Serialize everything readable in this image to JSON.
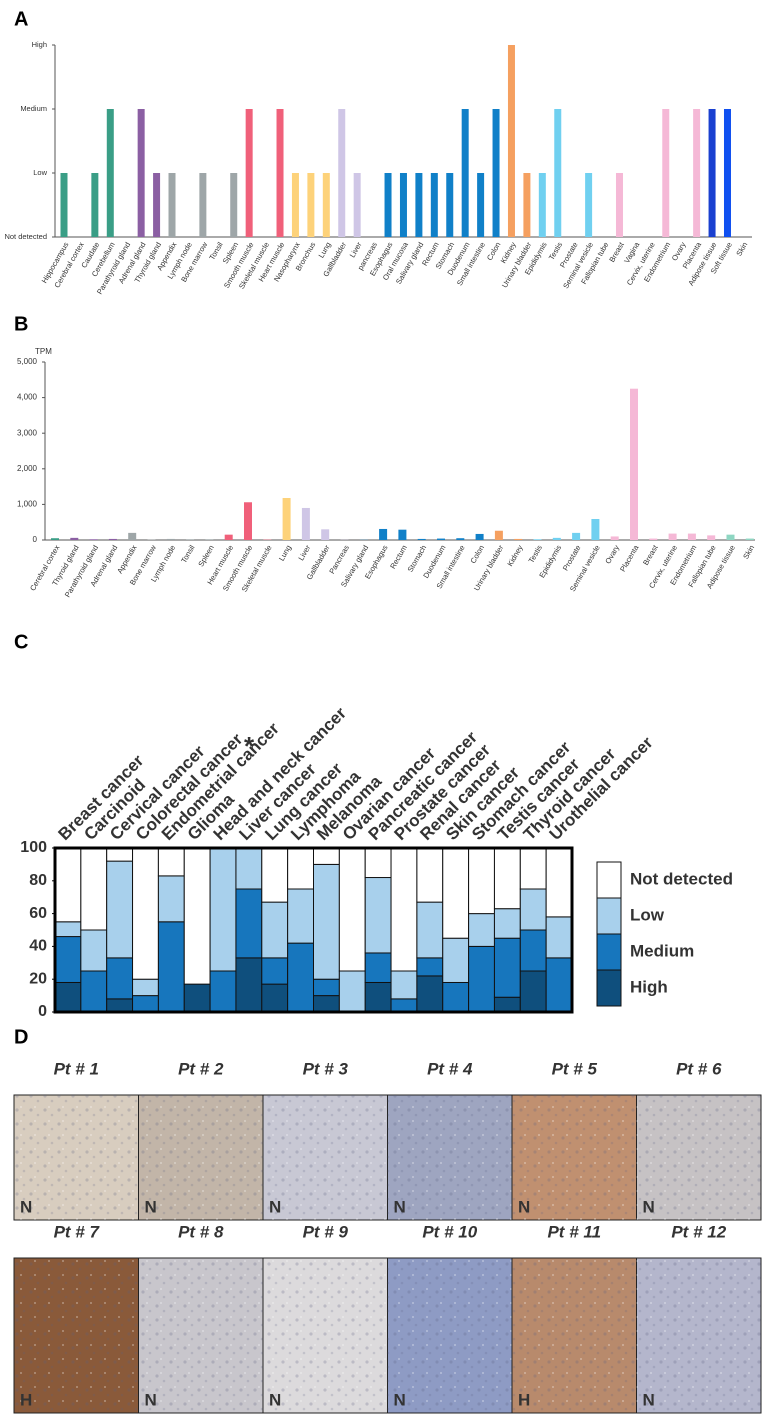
{
  "chart_data": [
    {
      "type": "bar",
      "panel": "A",
      "categories": [
        "Hippocampus",
        "Cerebral cortex",
        "Caudate",
        "Cerebellum",
        "Parathyroid gland",
        "Adrenal gland",
        "Thyroid gland",
        "Appendix",
        "Lymph node",
        "Bone marrow",
        "Tonsil",
        "Spleen",
        "Smooth muscle",
        "Skeletal muscle",
        "Heart muscle",
        "Nasopharynx",
        "Bronchus",
        "Lung",
        "Gallbladder",
        "Liver",
        "pancreas",
        "Esophagus",
        "Oral mucosa",
        "Salivary gland",
        "Rectum",
        "Stomach",
        "Duodenum",
        "Small intestine",
        "Colon",
        "Kidney",
        "Urinary bladder",
        "Epididymis",
        "Testis",
        "Prostate",
        "Seminal vesicle",
        "Fallopian tube",
        "Breast",
        "Vagina",
        "Cervix, uterine",
        "Endometrium",
        "Ovary",
        "Placenta",
        "Adipose tissue",
        "Soft tissue",
        "Skin"
      ],
      "values": [
        1,
        0,
        1,
        2,
        0,
        2,
        1,
        1,
        0,
        1,
        0,
        1,
        2,
        0,
        2,
        1,
        1,
        1,
        2,
        1,
        0,
        1,
        1,
        1,
        1,
        1,
        2,
        1,
        2,
        3,
        1,
        1,
        2,
        0,
        1,
        0,
        1,
        0,
        0,
        2,
        0,
        2,
        2,
        2,
        0
      ],
      "colors": [
        "#3a9e86",
        "#3a9e86",
        "#3a9e86",
        "#3a9e86",
        "#8b5fa3",
        "#8b5fa3",
        "#8b5fa3",
        "#9ea6a8",
        "#9ea6a8",
        "#9ea6a8",
        "#9ea6a8",
        "#9ea6a8",
        "#f0607a",
        "#f0607a",
        "#f0607a",
        "#fdd27a",
        "#fdd27a",
        "#fdd27a",
        "#cfc6e6",
        "#cfc6e6",
        "#cfc6e6",
        "#1080c8",
        "#1080c8",
        "#1080c8",
        "#1080c8",
        "#1080c8",
        "#1080c8",
        "#1080c8",
        "#1080c8",
        "#f5a060",
        "#f5a060",
        "#70d0f0",
        "#70d0f0",
        "#70d0f0",
        "#70d0f0",
        "#f5b8d6",
        "#f5b8d6",
        "#f5b8d6",
        "#f5b8d6",
        "#f5b8d6",
        "#f5b8d6",
        "#f5b8d6",
        "#1a40d0",
        "#1050f0",
        "#1050f0"
      ],
      "ylim": [
        0,
        3
      ],
      "yticks": [
        {
          "value": 0,
          "label": "Not detected"
        },
        {
          "value": 1,
          "label": "Low"
        },
        {
          "value": 2,
          "label": "Medium"
        },
        {
          "value": 3,
          "label": "High"
        }
      ]
    },
    {
      "type": "bar",
      "panel": "B",
      "ylabel": "TPM",
      "categories": [
        "Cerebral cortex",
        "Thyroid gland",
        "Parathyroid gland",
        "Adrenal gland",
        "Appendix",
        "Bone marrow",
        "Lymph node",
        "Tonsil",
        "Spleen",
        "Heart muscle",
        "Smooth muscle",
        "Skeletal muscle",
        "Lung",
        "Liver",
        "Gallbladder",
        "Pancreas",
        "Salivary gland",
        "Esophagus",
        "Rectum",
        "Stomach",
        "Duodenum",
        "Small intestine",
        "Colon",
        "Urinary bladder",
        "Kidney",
        "Testis",
        "Epididymis",
        "Prostate",
        "Seminal vesicle",
        "Ovary",
        "Placenta",
        "Breast",
        "Cervix, uterine",
        "Endometrium",
        "Fallopian tube",
        "Adipose tissue",
        "Skin"
      ],
      "values": [
        50,
        60,
        20,
        30,
        200,
        10,
        30,
        20,
        20,
        150,
        1060,
        10,
        1180,
        900,
        300,
        5,
        5,
        310,
        290,
        30,
        40,
        50,
        170,
        260,
        30,
        20,
        60,
        200,
        590,
        100,
        4250,
        40,
        180,
        180,
        130,
        150,
        40
      ],
      "colors": [
        "#3a9e86",
        "#8b5fa3",
        "#8b5fa3",
        "#8b5fa3",
        "#9ea6a8",
        "#9ea6a8",
        "#9ea6a8",
        "#9ea6a8",
        "#9ea6a8",
        "#f0607a",
        "#f0607a",
        "#f0607a",
        "#fdd27a",
        "#cfc6e6",
        "#cfc6e6",
        "#cfc6e6",
        "#1080c8",
        "#1080c8",
        "#1080c8",
        "#1080c8",
        "#1080c8",
        "#1080c8",
        "#1080c8",
        "#f5a060",
        "#f5a060",
        "#70d0f0",
        "#70d0f0",
        "#70d0f0",
        "#70d0f0",
        "#f5b8d6",
        "#f5b8d6",
        "#f5b8d6",
        "#f5b8d6",
        "#f5b8d6",
        "#f5b8d6",
        "#8ed6c2",
        "#8ed6c2"
      ],
      "ylim": [
        0,
        5000
      ],
      "yticks": [
        0,
        {
          "value": 1000,
          "label": "1,000"
        },
        {
          "value": 2000,
          "label": "2,000"
        },
        {
          "value": 3000,
          "label": "3,000"
        },
        {
          "value": 4000,
          "label": "4,000"
        },
        {
          "value": 5000,
          "label": "5,000"
        }
      ]
    },
    {
      "type": "stacked_bar",
      "panel": "C",
      "annotation": "*",
      "categories": [
        "Breast cancer",
        "Carcinoid",
        "Cervical cancer",
        "Colorectal cancer",
        "Endometrial cancer",
        "Glioma",
        "Head and neck cancer",
        "Liver cancer",
        "Lung cancer",
        "Lymphoma",
        "Melanoma",
        "Ovarian cancer",
        "Pancreatic cancer",
        "Prostate cancer",
        "Renal cancer",
        "Skin cancer",
        "Stomach cancer",
        "Testis cancer",
        "Thyroid cancer",
        "Urothelial cancer"
      ],
      "series": [
        {
          "name": "High",
          "color": "#0f4f7d",
          "values": [
            18,
            0,
            8,
            0,
            0,
            17,
            0,
            33,
            17,
            0,
            10,
            0,
            18,
            0,
            22,
            0,
            0,
            9,
            25,
            0
          ]
        },
        {
          "name": "Medium",
          "color": "#1776bd",
          "values": [
            28,
            25,
            25,
            10,
            55,
            0,
            25,
            42,
            16,
            42,
            10,
            0,
            18,
            8,
            11,
            18,
            40,
            36,
            25,
            33
          ]
        },
        {
          "name": "Low",
          "color": "#a8d0ec",
          "values": [
            9,
            25,
            59,
            10,
            28,
            0,
            75,
            25,
            34,
            33,
            70,
            25,
            46,
            17,
            34,
            27,
            20,
            18,
            25,
            25
          ]
        },
        {
          "name": "Not detected",
          "color": "#ffffff",
          "values": [
            45,
            50,
            8,
            80,
            17,
            83,
            0,
            0,
            33,
            25,
            10,
            75,
            18,
            75,
            33,
            55,
            40,
            37,
            25,
            42
          ]
        }
      ],
      "ylim": [
        0,
        100
      ],
      "yticks": [
        0,
        20,
        40,
        60,
        80,
        100
      ]
    }
  ],
  "panel_d": {
    "panel": "D",
    "patients": [
      {
        "label": "Pt # 1",
        "score": "N",
        "color": "#d8cdbf"
      },
      {
        "label": "Pt # 2",
        "score": "N",
        "color": "#c2b5a8"
      },
      {
        "label": "Pt # 3",
        "score": "N",
        "color": "#c8c8d4"
      },
      {
        "label": "Pt # 4",
        "score": "N",
        "color": "#9ea5c0"
      },
      {
        "label": "Pt # 5",
        "score": "N",
        "color": "#c09070"
      },
      {
        "label": "Pt # 6",
        "score": "N",
        "color": "#c6c2c4"
      },
      {
        "label": "Pt # 7",
        "score": "H",
        "color": "#8a5a3a"
      },
      {
        "label": "Pt # 8",
        "score": "N",
        "color": "#c8c6cc"
      },
      {
        "label": "Pt # 9",
        "score": "N",
        "color": "#dcdadc"
      },
      {
        "label": "Pt # 10",
        "score": "N",
        "color": "#8e9bc4"
      },
      {
        "label": "Pt # 11",
        "score": "H",
        "color": "#b88a6c"
      },
      {
        "label": "Pt # 12",
        "score": "N",
        "color": "#b4b6cc"
      }
    ]
  }
}
